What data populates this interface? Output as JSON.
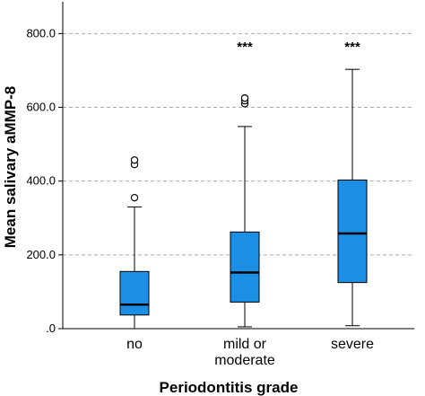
{
  "chart_data": {
    "type": "boxplot",
    "xlabel": "Periodontitis grade",
    "ylabel": "Mean salivary aMMP-8",
    "ylim": [
      0,
      860
    ],
    "yticks": [
      {
        "value": 0,
        "label": ".0"
      },
      {
        "value": 200,
        "label": "200.0"
      },
      {
        "value": 400,
        "label": "400.0"
      },
      {
        "value": 600,
        "label": "600.0"
      },
      {
        "value": 800,
        "label": "800.0"
      }
    ],
    "grid": "horizontal dashed at major ticks",
    "box_color": "#1b8fe3",
    "categories": [
      {
        "label_lines": [
          "no"
        ],
        "min": 0,
        "q1": 37,
        "median": 65,
        "q3": 155,
        "max": 330,
        "outliers": [
          355,
          445,
          457
        ],
        "annotation": ""
      },
      {
        "label_lines": [
          "mild or",
          "moderate"
        ],
        "min": 5,
        "q1": 72,
        "median": 152,
        "q3": 262,
        "max": 548,
        "outliers": [
          610,
          618,
          625
        ],
        "annotation": "***"
      },
      {
        "label_lines": [
          "severe"
        ],
        "min": 8,
        "q1": 125,
        "median": 258,
        "q3": 403,
        "max": 703,
        "outliers": [],
        "annotation": "***"
      }
    ]
  }
}
